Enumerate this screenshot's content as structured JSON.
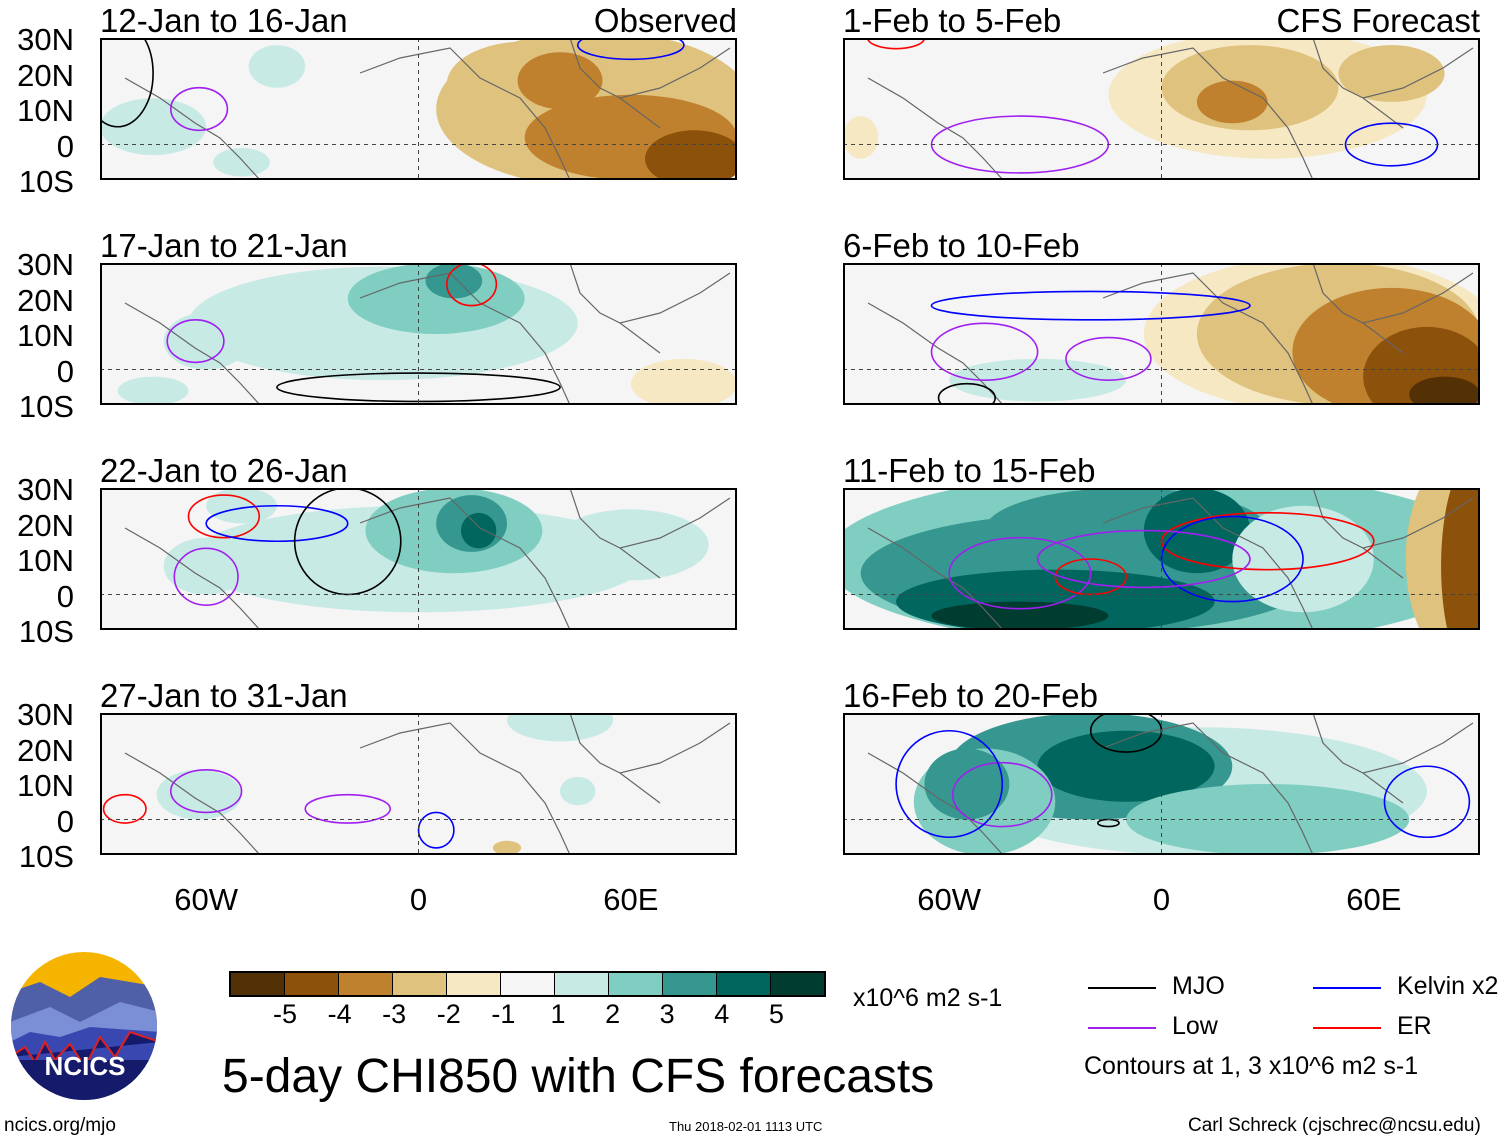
{
  "panels": [
    {
      "title": "12-Jan to 16-Jan",
      "label": "Observed"
    },
    {
      "title": "17-Jan to 21-Jan"
    },
    {
      "title": "22-Jan to 26-Jan"
    },
    {
      "title": "27-Jan to 31-Jan"
    },
    {
      "title": "1-Feb to 5-Feb",
      "label": "CFS Forecast"
    },
    {
      "title": "6-Feb to 10-Feb"
    },
    {
      "title": "11-Feb to 15-Feb"
    },
    {
      "title": "16-Feb to 20-Feb"
    }
  ],
  "lat_labels": [
    "30N",
    "20N",
    "10N",
    "0",
    "10S"
  ],
  "lon_labels": [
    "60W",
    "0",
    "60E"
  ],
  "colorbar": {
    "colors": [
      "#543005",
      "#8c510a",
      "#bf812d",
      "#dfc27d",
      "#f6e8c3",
      "#f5f5f5",
      "#c7eae5",
      "#80cdc1",
      "#35978f",
      "#01665e",
      "#003c30"
    ],
    "labels": [
      "-5",
      "-4",
      "-3",
      "-2",
      "-1",
      "1",
      "2",
      "3",
      "4",
      "5"
    ],
    "units": "x10^6 m2 s-1"
  },
  "legend": {
    "items": [
      {
        "label": "MJO",
        "color": "#000000"
      },
      {
        "label": "Kelvin x2",
        "color": "#0000ff"
      },
      {
        "label": "Low",
        "color": "#a020f0"
      },
      {
        "label": "ER",
        "color": "#ff0000"
      }
    ],
    "note": "Contours at 1, 3 x10^6 m2 s-1"
  },
  "title": "5-day CHI850 with CFS forecasts",
  "logo": "NCICS",
  "footer": {
    "left": "ncics.org/mjo",
    "center": "Thu 2018-02-01 1113 UTC",
    "right": "Carl Schreck (cjschrec@ncsu.edu)"
  }
}
